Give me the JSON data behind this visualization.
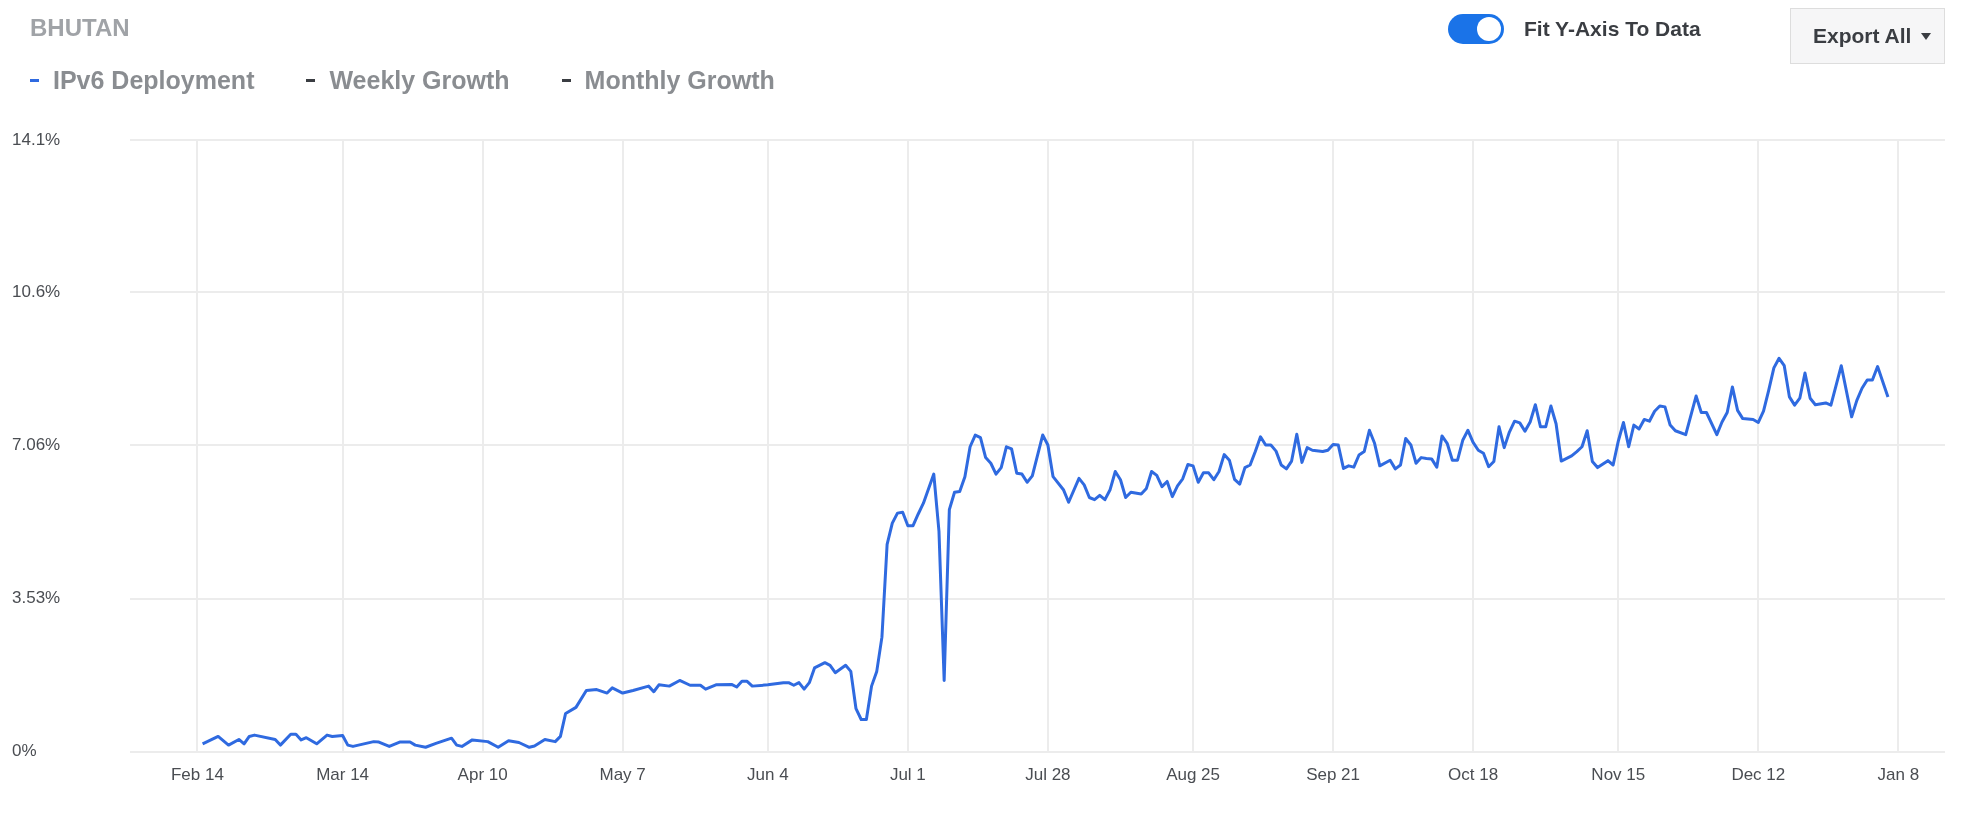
{
  "chart_data": {
    "type": "line",
    "title": "BHUTAN",
    "annotations": [
      "Fit Y-Axis To Data",
      "Export All"
    ],
    "legend": "top left",
    "grid": true,
    "marker": "none",
    "line_style": "solid",
    "categories": [
      null,
      null,
      null,
      null,
      null,
      null,
      null,
      null,
      null,
      null,
      null,
      null,
      null,
      "Feb 14",
      null,
      null,
      null,
      null,
      null,
      null,
      null,
      null,
      null,
      null,
      null,
      null,
      null,
      null,
      null,
      null,
      null,
      null,
      null,
      null,
      null,
      null,
      null,
      null,
      null,
      null,
      null,
      "Mar 14",
      null,
      null,
      null,
      null,
      null,
      null,
      null,
      null,
      null,
      null,
      null,
      null,
      null,
      null,
      null,
      null,
      null,
      null,
      null,
      null,
      null,
      null,
      null,
      null,
      null,
      null,
      "Apr 10",
      null,
      null,
      null,
      null,
      null,
      null,
      null,
      null,
      null,
      null,
      null,
      null,
      null,
      null,
      null,
      null,
      null,
      null,
      null,
      null,
      null,
      null,
      null,
      null,
      null,
      null,
      "May 7",
      null,
      null,
      null,
      null,
      null,
      null,
      null,
      null,
      null,
      null,
      null,
      null,
      null,
      null,
      null,
      null,
      null,
      null,
      null,
      null,
      null,
      null,
      null,
      null,
      null,
      null,
      null,
      "Jun 4",
      null,
      null,
      null,
      null,
      null,
      null,
      null,
      null,
      null,
      null,
      null,
      null,
      null,
      null,
      null,
      null,
      null,
      null,
      null,
      null,
      null,
      null,
      null,
      null,
      null,
      null,
      "Jul 1",
      null,
      null,
      null,
      null,
      null,
      null,
      null,
      null,
      null,
      null,
      null,
      null,
      null,
      null,
      null,
      null,
      null,
      null,
      null,
      null,
      null,
      null,
      null,
      null,
      null,
      null,
      "Jul 28",
      null,
      null,
      null,
      null,
      null,
      null,
      null,
      null,
      null,
      null,
      null,
      null,
      null,
      null,
      null,
      null,
      null,
      null,
      null,
      null,
      null,
      null,
      null,
      null,
      null,
      null,
      null,
      "Aug 25",
      null,
      null,
      null,
      null,
      null,
      null,
      null,
      null,
      null,
      null,
      null,
      null,
      null,
      null,
      null,
      null,
      null,
      null,
      null,
      null,
      null,
      null,
      null,
      null,
      null,
      null,
      "Sep 21",
      null,
      null,
      null,
      null,
      null,
      null,
      null,
      null,
      null,
      null,
      null,
      null,
      null,
      null,
      null,
      null,
      null,
      null,
      null,
      null,
      null,
      null,
      null,
      null,
      null,
      null,
      "Oct 18",
      null,
      null,
      null,
      null,
      null,
      null,
      null,
      null,
      null,
      null,
      null,
      null,
      null,
      null,
      null,
      null,
      null,
      null,
      null,
      null,
      null,
      null,
      null,
      null,
      null,
      null,
      null,
      "Nov 15",
      null,
      null,
      null,
      null,
      null,
      null,
      null,
      null,
      null,
      null,
      null,
      null,
      null,
      null,
      null,
      null,
      null,
      null,
      null,
      null,
      null,
      null,
      null,
      null,
      null,
      null,
      "Dec 12",
      null,
      null,
      null,
      null,
      null,
      null,
      null,
      null,
      null,
      null,
      null,
      null,
      null,
      null,
      null,
      null,
      null,
      null,
      null,
      null,
      null,
      null,
      null,
      null,
      null,
      null,
      "Jan 8",
      null,
      null,
      null,
      null,
      null,
      null,
      null,
      null,
      null
    ],
    "ylim": [
      0,
      14.1
    ],
    "yticks": [
      {
        "value": 0,
        "label": "0%"
      },
      {
        "value": 3.53,
        "label": "3.53%"
      },
      {
        "value": 7.06,
        "label": "7.06%"
      },
      {
        "value": 10.6,
        "label": "10.6%"
      },
      {
        "value": 14.1,
        "label": "14.1%"
      }
    ],
    "series": [
      {
        "name": "IPv6 Deployment",
        "color": "#2f6ae0",
        "values": [
          null,
          null,
          null,
          null,
          null,
          null,
          null,
          null,
          null,
          null,
          null,
          null,
          null,
          null,
          0.18,
          null,
          null,
          0.35,
          null,
          0.15,
          null,
          0.28,
          0.18,
          0.35,
          0.38,
          null,
          null,
          null,
          0.28,
          0.15,
          null,
          0.4,
          0.4,
          0.27,
          0.32,
          null,
          0.18,
          null,
          0.38,
          0.35,
          null,
          0.37,
          0.15,
          0.12,
          null,
          null,
          null,
          0.23,
          0.22,
          null,
          0.12,
          null,
          0.22,
          null,
          0.22,
          0.15,
          null,
          0.1,
          null,
          0.19,
          null,
          null,
          0.31,
          0.15,
          0.12,
          null,
          0.27,
          null,
          null,
          0.23,
          null,
          0.1,
          null,
          0.25,
          null,
          0.21,
          null,
          0.1,
          0.13,
          null,
          0.28,
          null,
          0.23,
          0.35,
          0.88,
          null,
          1.02,
          null,
          1.41,
          null,
          1.43,
          null,
          1.35,
          1.47,
          null,
          1.35,
          null,
          1.41,
          null,
          null,
          1.51,
          1.38,
          1.54,
          null,
          1.51,
          null,
          1.64,
          null,
          1.53,
          null,
          1.53,
          1.44,
          null,
          1.54,
          null,
          null,
          1.55,
          1.49,
          1.62,
          1.62,
          1.51,
          null,
          null,
          1.54,
          null,
          null,
          1.59,
          1.59,
          1.53,
          1.59,
          1.44,
          1.59,
          1.93,
          null,
          2.05,
          1.99,
          1.82,
          null,
          1.99,
          1.85,
          0.99,
          0.74,
          0.74,
          1.51,
          1.85,
          2.64,
          4.78,
          5.27,
          5.5,
          5.52,
          5.21,
          5.21,
          5.48,
          5.73,
          null,
          6.4,
          5.08,
          1.64,
          5.58,
          5.98,
          6.0,
          6.34,
          7.03,
          7.3,
          7.24,
          6.78,
          6.65,
          6.4,
          6.55,
          7.03,
          6.98,
          6.42,
          6.4,
          6.21,
          6.36,
          null,
          7.3,
          7.07,
          6.34,
          null,
          6.04,
          5.75,
          null,
          6.3,
          6.15,
          5.86,
          5.81,
          5.91,
          5.81,
          6.04,
          6.46,
          6.27,
          5.86,
          5.98,
          null,
          5.94,
          6.07,
          6.46,
          6.37,
          6.11,
          6.23,
          5.88,
          6.13,
          6.29,
          6.62,
          6.59,
          6.21,
          6.43,
          6.43,
          6.27,
          6.46,
          6.85,
          6.72,
          6.28,
          6.17,
          6.55,
          6.61,
          6.92,
          7.26,
          7.07,
          7.07,
          6.93,
          6.61,
          6.52,
          6.7,
          7.32,
          6.67,
          7.01,
          6.95,
          null,
          6.92,
          6.95,
          7.08,
          7.07,
          6.53,
          6.59,
          6.56,
          6.84,
          6.92,
          7.41,
          7.11,
          6.59,
          null,
          6.72,
          6.52,
          6.61,
          7.22,
          7.07,
          6.65,
          6.78,
          6.76,
          6.75,
          6.56,
          7.28,
          7.11,
          6.72,
          6.72,
          7.18,
          7.41,
          7.13,
          6.95,
          6.88,
          6.57,
          6.69,
          7.49,
          7.01,
          7.37,
          7.62,
          7.58,
          7.39,
          7.6,
          8.0,
          7.49,
          7.49,
          7.97,
          7.56,
          6.7,
          null,
          6.82,
          6.92,
          7.03,
          7.4,
          6.69,
          6.55,
          null,
          6.71,
          6.61,
          7.16,
          7.59,
          7.03,
          7.53,
          7.44,
          7.66,
          7.62,
          7.85,
          7.97,
          7.95,
          7.53,
          7.4,
          null,
          7.31,
          null,
          8.2,
          7.82,
          7.82,
          null,
          7.31,
          7.6,
          7.82,
          8.41,
          7.87,
          7.68,
          null,
          7.66,
          7.59,
          7.85,
          8.33,
          8.85,
          9.07,
          8.9,
          8.18,
          7.99,
          8.15,
          8.73,
          8.15,
          8.0,
          null,
          8.04,
          7.99,
          null,
          8.9,
          null,
          7.72,
          8.1,
          8.38,
          8.57,
          8.57,
          8.88,
          null,
          8.18,
          null,
          null,
          null,
          null,
          null,
          null,
          null,
          null,
          null,
          null,
          null
        ]
      },
      {
        "name": "Weekly Growth",
        "values": [
          null,
          null,
          null,
          null,
          null,
          null,
          null,
          null,
          null,
          null,
          null,
          null,
          null,
          null,
          null,
          null,
          null,
          null,
          null,
          null,
          null,
          null,
          null,
          null,
          null,
          null,
          null,
          null,
          null,
          null,
          null,
          null,
          null,
          null,
          null,
          null,
          null,
          null,
          null,
          null,
          null,
          null,
          null,
          null,
          null,
          null,
          null,
          null,
          null,
          null,
          null,
          null,
          null,
          null,
          null,
          null,
          null,
          null,
          null,
          null,
          null,
          null,
          null,
          null,
          null,
          null,
          null,
          null,
          null,
          null,
          null,
          null,
          null,
          null,
          null,
          null,
          null,
          null,
          null,
          null,
          null,
          null,
          null,
          null,
          null,
          null,
          null,
          null,
          null,
          null,
          null,
          null,
          null,
          null,
          null,
          null,
          null,
          null,
          null,
          null,
          null,
          null,
          null,
          null,
          null,
          null,
          null,
          null,
          null,
          null,
          null,
          null,
          null,
          null,
          null,
          null,
          null,
          null,
          null,
          null,
          null,
          null,
          null,
          null,
          null,
          null,
          null,
          null,
          null,
          null,
          null,
          null,
          null,
          null,
          null,
          null,
          null,
          null,
          null,
          null,
          null,
          null,
          null,
          null,
          null,
          null,
          null,
          null,
          null,
          null,
          null,
          null,
          null,
          null,
          null,
          null,
          null,
          null,
          null,
          null,
          null,
          null,
          null,
          null,
          null,
          null,
          null,
          null,
          null,
          null,
          null,
          null,
          null,
          null,
          null,
          null,
          null,
          null,
          null,
          null,
          null,
          null,
          null,
          null,
          null,
          null,
          null,
          null,
          null,
          null,
          null,
          null,
          null,
          null,
          null,
          null,
          null,
          null,
          null,
          null,
          null,
          null,
          null,
          null,
          null,
          null,
          null,
          null,
          null,
          null,
          null,
          null,
          null,
          null,
          null,
          null,
          null,
          null,
          null,
          null,
          null,
          null,
          null,
          null,
          null,
          null,
          null,
          null,
          null,
          null,
          null,
          null,
          null,
          null,
          null,
          null,
          null,
          null,
          null,
          null,
          null,
          null,
          null,
          null,
          null,
          null,
          null,
          null,
          null,
          null,
          null,
          null,
          null,
          null,
          null,
          null,
          null,
          null,
          null,
          null,
          null,
          null,
          null,
          null,
          null,
          null,
          null,
          null,
          null,
          null,
          null,
          null,
          null,
          null,
          null,
          null,
          null,
          null,
          null,
          null,
          null,
          null,
          null,
          null,
          null,
          null,
          null,
          null,
          null,
          null,
          null,
          null,
          null,
          null,
          null,
          null,
          null,
          null,
          null,
          null,
          null,
          null,
          null,
          null,
          null,
          null,
          null,
          null,
          null,
          null,
          null,
          null,
          null,
          null,
          null,
          null,
          null,
          null,
          null,
          null,
          null,
          null,
          null,
          null,
          null,
          null,
          null,
          null,
          null,
          null,
          null,
          null,
          null,
          null,
          null,
          null,
          null,
          null,
          null,
          null,
          null,
          null,
          null,
          null,
          null,
          null,
          null,
          null,
          null,
          null,
          null
        ]
      },
      {
        "name": "Monthly Growth",
        "values": [
          null,
          null,
          null,
          null,
          null,
          null,
          null,
          null,
          null,
          null,
          null,
          null,
          null,
          null,
          null,
          null,
          null,
          null,
          null,
          null,
          null,
          null,
          null,
          null,
          null,
          null,
          null,
          null,
          null,
          null,
          null,
          null,
          null,
          null,
          null,
          null,
          null,
          null,
          null,
          null,
          null,
          null,
          null,
          null,
          null,
          null,
          null,
          null,
          null,
          null,
          null,
          null,
          null,
          null,
          null,
          null,
          null,
          null,
          null,
          null,
          null,
          null,
          null,
          null,
          null,
          null,
          null,
          null,
          null,
          null,
          null,
          null,
          null,
          null,
          null,
          null,
          null,
          null,
          null,
          null,
          null,
          null,
          null,
          null,
          null,
          null,
          null,
          null,
          null,
          null,
          null,
          null,
          null,
          null,
          null,
          null,
          null,
          null,
          null,
          null,
          null,
          null,
          null,
          null,
          null,
          null,
          null,
          null,
          null,
          null,
          null,
          null,
          null,
          null,
          null,
          null,
          null,
          null,
          null,
          null,
          null,
          null,
          null,
          null,
          null,
          null,
          null,
          null,
          null,
          null,
          null,
          null,
          null,
          null,
          null,
          null,
          null,
          null,
          null,
          null,
          null,
          null,
          null,
          null,
          null,
          null,
          null,
          null,
          null,
          null,
          null,
          null,
          null,
          null,
          null,
          null,
          null,
          null,
          null,
          null,
          null,
          null,
          null,
          null,
          null,
          null,
          null,
          null,
          null,
          null,
          null,
          null,
          null,
          null,
          null,
          null,
          null,
          null,
          null,
          null,
          null,
          null,
          null,
          null,
          null,
          null,
          null,
          null,
          null,
          null,
          null,
          null,
          null,
          null,
          null,
          null,
          null,
          null,
          null,
          null,
          null,
          null,
          null,
          null,
          null,
          null,
          null,
          null,
          null,
          null,
          null,
          null,
          null,
          null,
          null,
          null,
          null,
          null,
          null,
          null,
          null,
          null,
          null,
          null,
          null,
          null,
          null,
          null,
          null,
          null,
          null,
          null,
          null,
          null,
          null,
          null,
          null,
          null,
          null,
          null,
          null,
          null,
          null,
          null,
          null,
          null,
          null,
          null,
          null,
          null,
          null,
          null,
          null,
          null,
          null,
          null,
          null,
          null,
          null,
          null,
          null,
          null,
          null,
          null,
          null,
          null,
          null,
          null,
          null,
          null,
          null,
          null,
          null,
          null,
          null,
          null,
          null,
          null,
          null,
          null,
          null,
          null,
          null,
          null,
          null,
          null,
          null,
          null,
          null,
          null,
          null,
          null,
          null,
          null,
          null,
          null,
          null,
          null,
          null,
          null,
          null,
          null,
          null,
          null,
          null,
          null,
          null,
          null,
          null,
          null,
          null,
          null,
          null,
          null,
          null,
          null,
          null,
          null,
          null,
          null,
          null,
          null,
          null,
          null,
          null,
          null,
          null,
          null,
          null,
          null,
          null,
          null,
          null,
          null,
          null,
          null,
          null,
          null,
          null,
          null,
          null,
          null,
          null,
          null,
          null,
          null,
          null,
          null,
          null,
          null,
          null
        ]
      }
    ]
  }
}
